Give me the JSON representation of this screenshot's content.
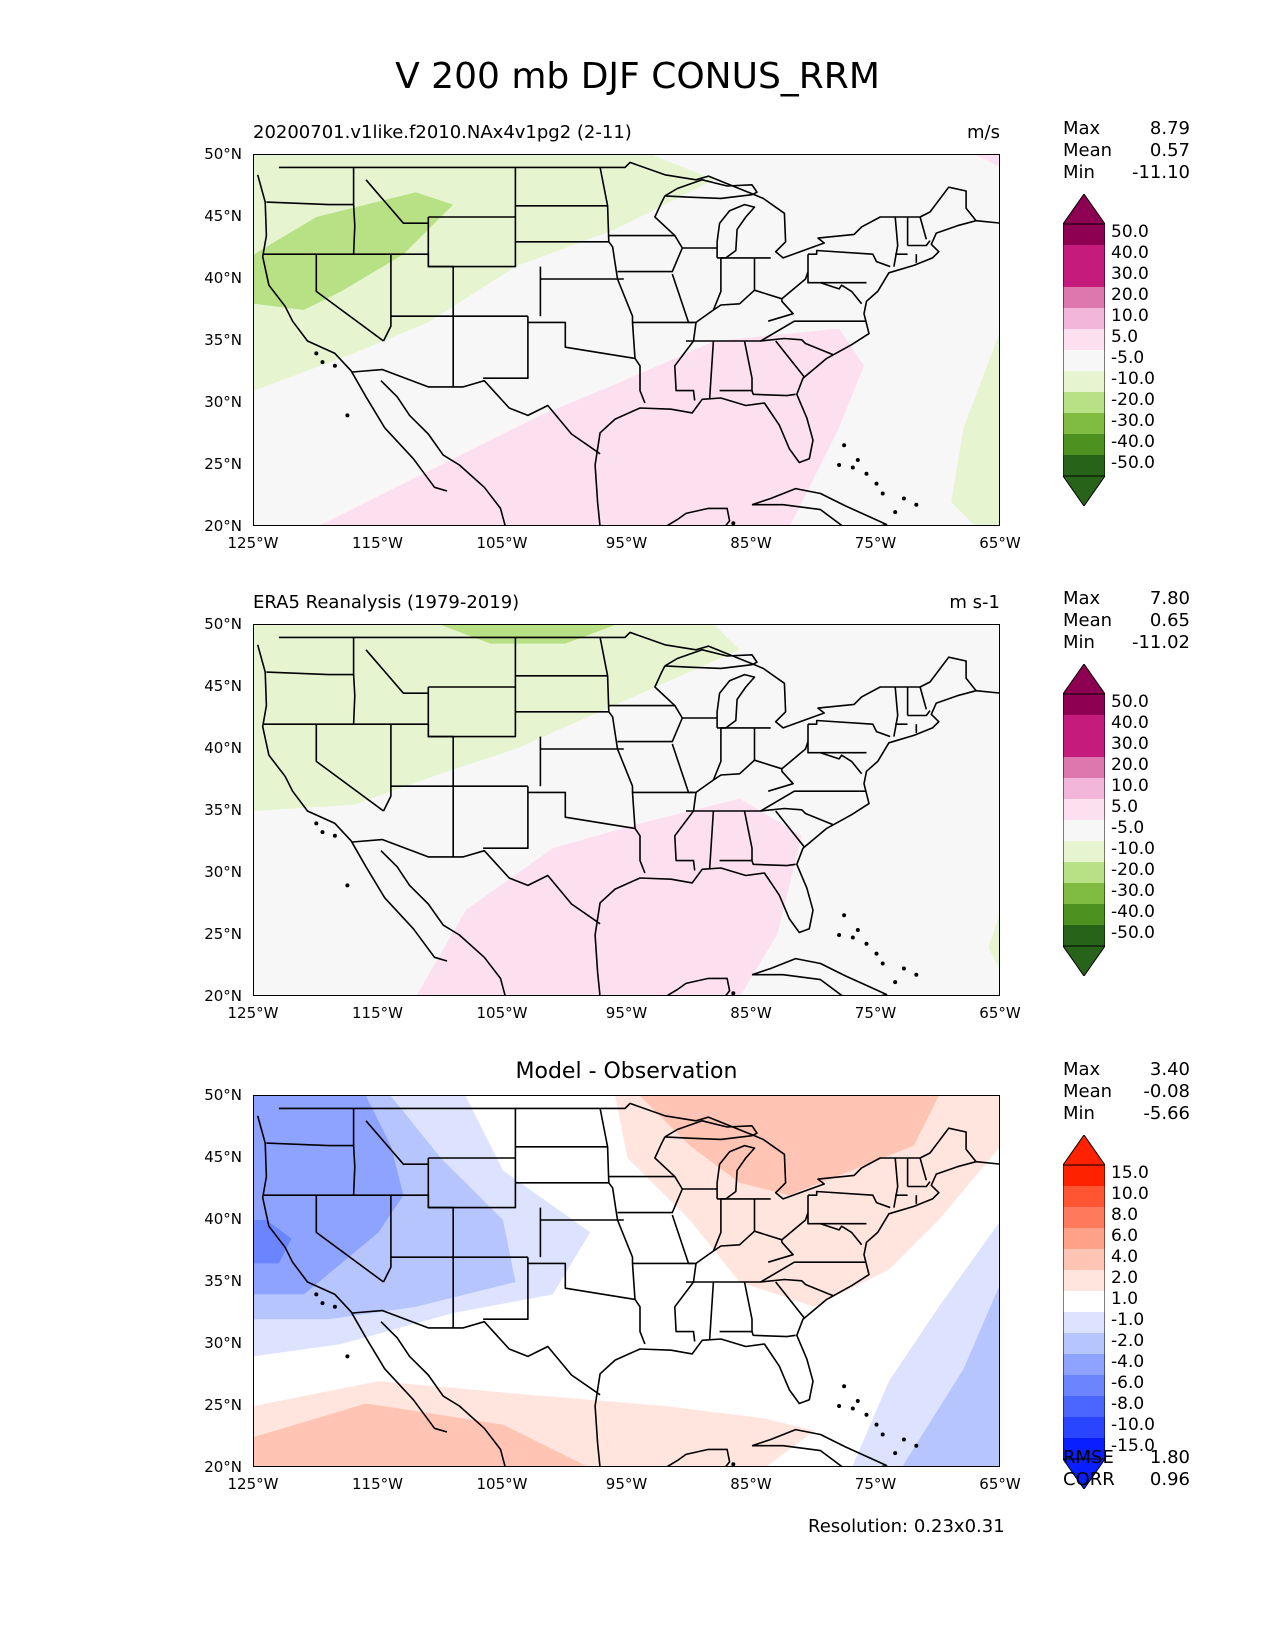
{
  "title": "V 200 mb DJF CONUS_RRM",
  "axes": {
    "lat_ticks": [
      "50°N",
      "45°N",
      "40°N",
      "35°N",
      "30°N",
      "25°N",
      "20°N"
    ],
    "lon_ticks": [
      "125°W",
      "115°W",
      "105°W",
      "95°W",
      "85°W",
      "75°W",
      "65°W"
    ],
    "lon_range": [
      -125,
      -65
    ],
    "lat_range": [
      20,
      50
    ]
  },
  "panels": [
    {
      "left_title": "20200701.v1like.f2010.NAx4v1pg2 (2-11)",
      "units": "m/s",
      "stats": [
        {
          "label": "Max",
          "value": "8.79"
        },
        {
          "label": "Mean",
          "value": "0.57"
        },
        {
          "label": "Min",
          "value": "-11.10"
        }
      ],
      "colorbar_labels": [
        "50.0",
        "40.0",
        "30.0",
        "20.0",
        "10.0",
        "5.0",
        "-5.0",
        "-10.0",
        "-20.0",
        "-30.0",
        "-40.0",
        "-50.0"
      ]
    },
    {
      "left_title": "ERA5 Reanalysis (1979-2019)",
      "units": "m s-1",
      "stats": [
        {
          "label": "Max",
          "value": "7.80"
        },
        {
          "label": "Mean",
          "value": "0.65"
        },
        {
          "label": "Min",
          "value": "-11.02"
        }
      ],
      "colorbar_labels": [
        "50.0",
        "40.0",
        "30.0",
        "20.0",
        "10.0",
        "5.0",
        "-5.0",
        "-10.0",
        "-20.0",
        "-30.0",
        "-40.0",
        "-50.0"
      ]
    },
    {
      "center_title": "Model - Observation",
      "stats": [
        {
          "label": "Max",
          "value": "3.40"
        },
        {
          "label": "Mean",
          "value": "-0.08"
        },
        {
          "label": "Min",
          "value": "-5.66"
        }
      ],
      "colorbar_labels": [
        "15.0",
        "10.0",
        "8.0",
        "6.0",
        "4.0",
        "2.0",
        "1.0",
        "-1.0",
        "-2.0",
        "-4.0",
        "-6.0",
        "-8.0",
        "-10.0",
        "-15.0"
      ],
      "extra_stats": [
        {
          "label": "RMSE",
          "value": "1.80"
        },
        {
          "label": "CORR",
          "value": "0.96"
        }
      ]
    }
  ],
  "resolution": "Resolution: 0.23x0.31",
  "colors": {
    "pg_colors": [
      "#8e0152",
      "#c51b7d",
      "#de77ae",
      "#f1b6da",
      "#fde0ef",
      "#f7f7f7",
      "#e6f5d0",
      "#b8e186",
      "#7fbc41",
      "#4d9221",
      "#276419"
    ],
    "diff_colors": [
      "#ff2200",
      "#ff5533",
      "#ff7a5c",
      "#ffa088",
      "#ffc4b3",
      "#ffe5dd",
      "#ffffff",
      "#dde3ff",
      "#b7c5ff",
      "#8ea3ff",
      "#6a85ff",
      "#4a66ff",
      "#2a45ff",
      "#0a1fff"
    ]
  }
}
